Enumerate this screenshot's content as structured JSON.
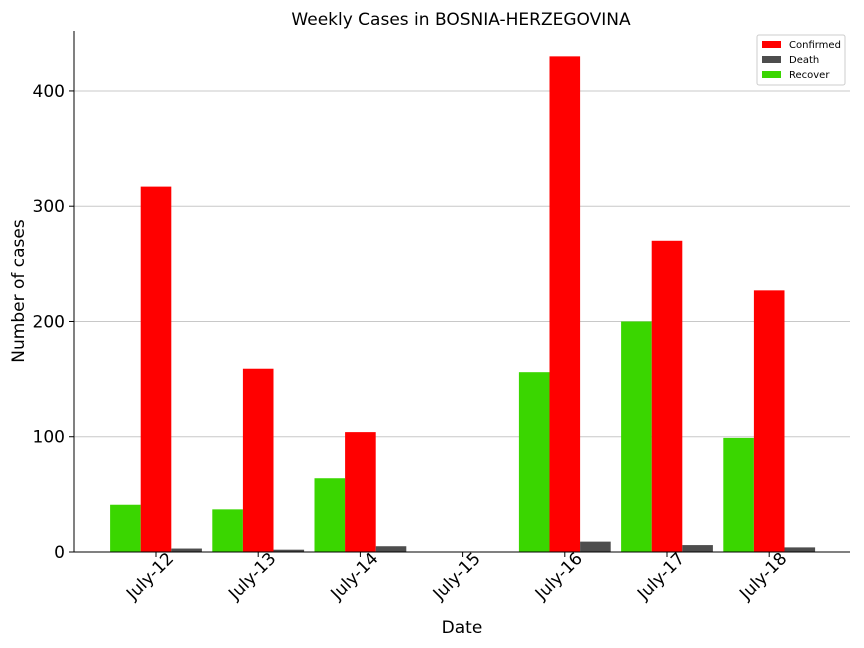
{
  "chart_data": {
    "type": "bar",
    "title": "Weekly Cases in BOSNIA-HERZEGOVINA",
    "xlabel": "Date",
    "ylabel": "Number of cases",
    "categories": [
      "July-12",
      "July-13",
      "July-14",
      "July-15",
      "July-16",
      "July-17",
      "July-18"
    ],
    "series": [
      {
        "name": "Recover",
        "color": "#3ad600",
        "values": [
          41,
          37,
          64,
          0,
          156,
          200,
          99
        ]
      },
      {
        "name": "Confirmed",
        "color": "#ff0000",
        "values": [
          317,
          159,
          104,
          0,
          430,
          270,
          227
        ]
      },
      {
        "name": "Death",
        "color": "#4d4d4d",
        "values": [
          3,
          2,
          5,
          0,
          9,
          6,
          4
        ]
      }
    ],
    "legend_order": [
      "Confirmed",
      "Death",
      "Recover"
    ],
    "yticks": [
      0,
      100,
      200,
      300,
      400
    ],
    "ylim": [
      0,
      452
    ],
    "grid": "horizontal",
    "legend_position": "top-right"
  }
}
